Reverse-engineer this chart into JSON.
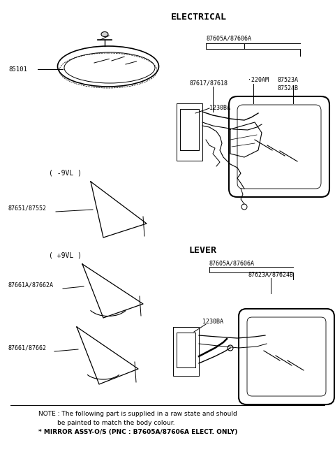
{
  "bg_color": "#ffffff",
  "lc": "#000000",
  "tc": "#000000",
  "title_electrical": "ELECTRICAL",
  "title_lever": "LEVER",
  "note1": "NOTE : The following part is supplied in a raw state and should",
  "note2": "be painted to match the body colour.",
  "note3": "* MIRROR ASSY-O/S (PNC : B7605A/87606A ELECT. ONLY)",
  "lbl_85101": "85101",
  "lbl_1230BA_t": "1230BA",
  "lbl_neg9VL": "( -9VL )",
  "lbl_87651": "87651/87552",
  "lbl_pos9VL": "( +9VL )",
  "lbl_87661A": "87661A/87662A",
  "lbl_1230BA_b": "1230BA",
  "lbl_87661": "87661/87662",
  "lbl_87605_t": "87605A/87606A",
  "lbl_220AM": "·220AM",
  "lbl_87617": "87617/87618",
  "lbl_87523A": "87523A",
  "lbl_87524B": "87524B",
  "lbl_87605_b": "87605A/87606A",
  "lbl_87623": "87623A/87624B"
}
